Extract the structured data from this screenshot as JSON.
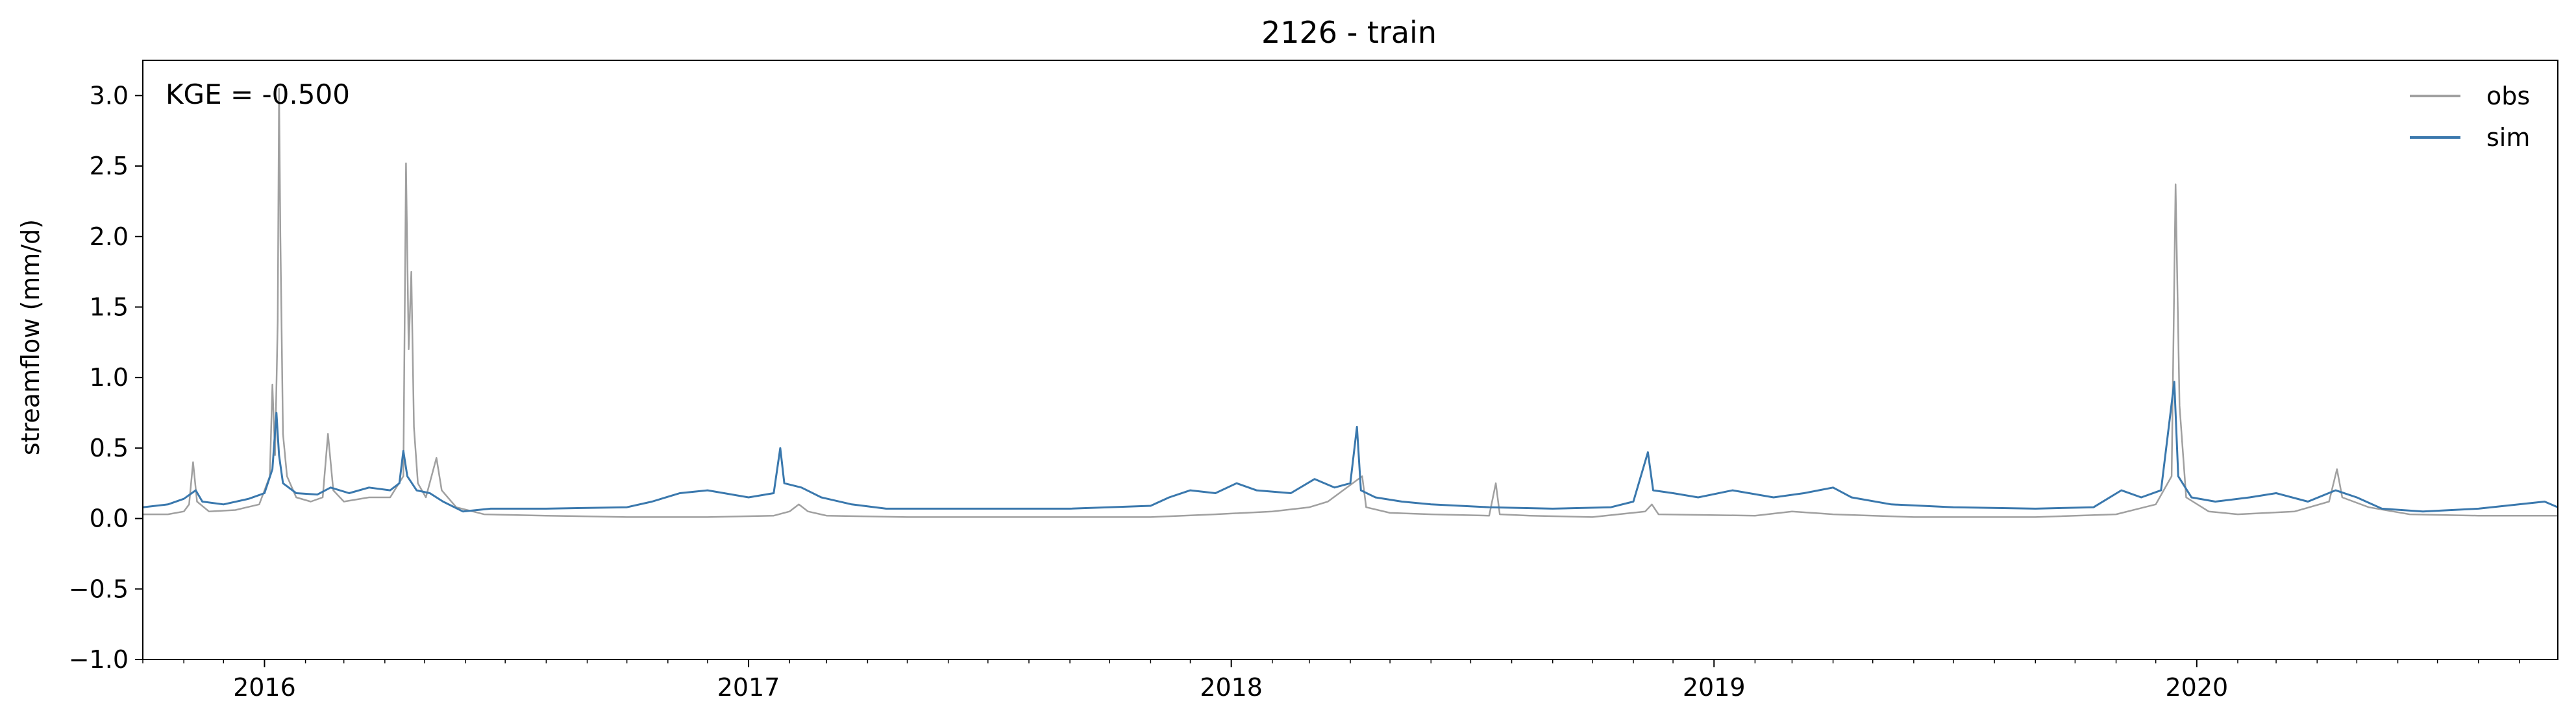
{
  "chart_data": {
    "type": "line",
    "title": "2126 - train",
    "xlabel": "",
    "ylabel": "streamflow (mm/d)",
    "annotation": "KGE = -0.500",
    "xlim": [
      "2015-10-01",
      "2020-09-30"
    ],
    "ylim": [
      -1.0,
      3.25
    ],
    "x_ticks": [
      "2016",
      "2017",
      "2018",
      "2019",
      "2020"
    ],
    "y_ticks": [
      "−1.0",
      "−0.5",
      "0.0",
      "0.5",
      "1.0",
      "1.5",
      "2.0",
      "2.5",
      "3.0"
    ],
    "legend_position": "top-right",
    "grid": false,
    "series": [
      {
        "name": "obs",
        "color": "#a0a0a0",
        "points": [
          [
            "2015-10-01",
            0.03
          ],
          [
            "2015-10-20",
            0.03
          ],
          [
            "2015-11-01",
            0.05
          ],
          [
            "2015-11-05",
            0.1
          ],
          [
            "2015-11-08",
            0.4
          ],
          [
            "2015-11-11",
            0.12
          ],
          [
            "2015-11-20",
            0.05
          ],
          [
            "2015-12-10",
            0.06
          ],
          [
            "2015-12-28",
            0.1
          ],
          [
            "2016-01-05",
            0.3
          ],
          [
            "2016-01-07",
            0.95
          ],
          [
            "2016-01-09",
            0.45
          ],
          [
            "2016-01-11",
            1.4
          ],
          [
            "2016-01-12",
            3.05
          ],
          [
            "2016-01-13",
            2.0
          ],
          [
            "2016-01-15",
            0.6
          ],
          [
            "2016-01-18",
            0.3
          ],
          [
            "2016-01-25",
            0.15
          ],
          [
            "2016-02-05",
            0.12
          ],
          [
            "2016-02-14",
            0.15
          ],
          [
            "2016-02-18",
            0.6
          ],
          [
            "2016-02-22",
            0.2
          ],
          [
            "2016-03-01",
            0.12
          ],
          [
            "2016-03-20",
            0.15
          ],
          [
            "2016-04-05",
            0.15
          ],
          [
            "2016-04-15",
            0.3
          ],
          [
            "2016-04-17",
            2.52
          ],
          [
            "2016-04-19",
            1.2
          ],
          [
            "2016-04-21",
            1.75
          ],
          [
            "2016-04-23",
            0.65
          ],
          [
            "2016-04-26",
            0.25
          ],
          [
            "2016-05-02",
            0.15
          ],
          [
            "2016-05-10",
            0.43
          ],
          [
            "2016-05-14",
            0.2
          ],
          [
            "2016-05-25",
            0.08
          ],
          [
            "2016-06-15",
            0.03
          ],
          [
            "2016-08-01",
            0.02
          ],
          [
            "2016-10-01",
            0.01
          ],
          [
            "2016-12-01",
            0.01
          ],
          [
            "2017-01-20",
            0.02
          ],
          [
            "2017-02-01",
            0.05
          ],
          [
            "2017-02-08",
            0.1
          ],
          [
            "2017-02-15",
            0.05
          ],
          [
            "2017-03-01",
            0.02
          ],
          [
            "2017-05-01",
            0.01
          ],
          [
            "2017-08-01",
            0.01
          ],
          [
            "2017-11-01",
            0.01
          ],
          [
            "2017-12-20",
            0.03
          ],
          [
            "2018-02-01",
            0.05
          ],
          [
            "2018-03-01",
            0.08
          ],
          [
            "2018-03-15",
            0.12
          ],
          [
            "2018-04-10",
            0.3
          ],
          [
            "2018-04-13",
            0.08
          ],
          [
            "2018-05-01",
            0.04
          ],
          [
            "2018-06-01",
            0.03
          ],
          [
            "2018-07-15",
            0.02
          ],
          [
            "2018-07-20",
            0.25
          ],
          [
            "2018-07-23",
            0.03
          ],
          [
            "2018-08-15",
            0.02
          ],
          [
            "2018-10-01",
            0.01
          ],
          [
            "2018-11-10",
            0.05
          ],
          [
            "2018-11-15",
            0.1
          ],
          [
            "2018-11-20",
            0.03
          ],
          [
            "2019-02-01",
            0.02
          ],
          [
            "2019-03-01",
            0.05
          ],
          [
            "2019-04-01",
            0.03
          ],
          [
            "2019-06-01",
            0.01
          ],
          [
            "2019-09-01",
            0.01
          ],
          [
            "2019-11-01",
            0.03
          ],
          [
            "2019-12-01",
            0.1
          ],
          [
            "2019-12-13",
            0.3
          ],
          [
            "2019-12-16",
            2.37
          ],
          [
            "2019-12-19",
            0.8
          ],
          [
            "2019-12-24",
            0.15
          ],
          [
            "2020-01-10",
            0.05
          ],
          [
            "2020-02-01",
            0.03
          ],
          [
            "2020-03-15",
            0.05
          ],
          [
            "2020-04-10",
            0.12
          ],
          [
            "2020-04-16",
            0.35
          ],
          [
            "2020-04-20",
            0.15
          ],
          [
            "2020-05-10",
            0.08
          ],
          [
            "2020-06-10",
            0.03
          ],
          [
            "2020-08-01",
            0.02
          ],
          [
            "2020-09-30",
            0.02
          ]
        ]
      },
      {
        "name": "sim",
        "color": "#3a78ad",
        "points": [
          [
            "2015-10-01",
            0.08
          ],
          [
            "2015-10-20",
            0.1
          ],
          [
            "2015-11-01",
            0.14
          ],
          [
            "2015-11-10",
            0.2
          ],
          [
            "2015-11-15",
            0.12
          ],
          [
            "2015-12-01",
            0.1
          ],
          [
            "2015-12-20",
            0.14
          ],
          [
            "2016-01-01",
            0.18
          ],
          [
            "2016-01-07",
            0.35
          ],
          [
            "2016-01-10",
            0.75
          ],
          [
            "2016-01-12",
            0.45
          ],
          [
            "2016-01-15",
            0.25
          ],
          [
            "2016-01-25",
            0.18
          ],
          [
            "2016-02-10",
            0.17
          ],
          [
            "2016-02-20",
            0.22
          ],
          [
            "2016-03-05",
            0.18
          ],
          [
            "2016-03-20",
            0.22
          ],
          [
            "2016-04-05",
            0.2
          ],
          [
            "2016-04-12",
            0.25
          ],
          [
            "2016-04-15",
            0.48
          ],
          [
            "2016-04-18",
            0.3
          ],
          [
            "2016-04-25",
            0.2
          ],
          [
            "2016-05-05",
            0.18
          ],
          [
            "2016-05-15",
            0.12
          ],
          [
            "2016-05-30",
            0.05
          ],
          [
            "2016-06-20",
            0.07
          ],
          [
            "2016-08-01",
            0.07
          ],
          [
            "2016-10-01",
            0.08
          ],
          [
            "2016-10-20",
            0.12
          ],
          [
            "2016-11-10",
            0.18
          ],
          [
            "2016-12-01",
            0.2
          ],
          [
            "2017-01-01",
            0.15
          ],
          [
            "2017-01-20",
            0.18
          ],
          [
            "2017-01-25",
            0.5
          ],
          [
            "2017-01-28",
            0.25
          ],
          [
            "2017-02-10",
            0.22
          ],
          [
            "2017-02-25",
            0.15
          ],
          [
            "2017-03-20",
            0.1
          ],
          [
            "2017-04-15",
            0.07
          ],
          [
            "2017-06-01",
            0.07
          ],
          [
            "2017-09-01",
            0.07
          ],
          [
            "2017-11-01",
            0.09
          ],
          [
            "2017-11-15",
            0.15
          ],
          [
            "2017-12-01",
            0.2
          ],
          [
            "2017-12-20",
            0.18
          ],
          [
            "2018-01-05",
            0.25
          ],
          [
            "2018-01-20",
            0.2
          ],
          [
            "2018-02-15",
            0.18
          ],
          [
            "2018-03-05",
            0.28
          ],
          [
            "2018-03-20",
            0.22
          ],
          [
            "2018-04-01",
            0.25
          ],
          [
            "2018-04-06",
            0.65
          ],
          [
            "2018-04-09",
            0.2
          ],
          [
            "2018-04-20",
            0.15
          ],
          [
            "2018-05-10",
            0.12
          ],
          [
            "2018-06-01",
            0.1
          ],
          [
            "2018-07-15",
            0.08
          ],
          [
            "2018-09-01",
            0.07
          ],
          [
            "2018-10-15",
            0.08
          ],
          [
            "2018-11-01",
            0.12
          ],
          [
            "2018-11-12",
            0.47
          ],
          [
            "2018-11-16",
            0.2
          ],
          [
            "2018-12-01",
            0.18
          ],
          [
            "2018-12-20",
            0.15
          ],
          [
            "2019-01-15",
            0.2
          ],
          [
            "2019-02-15",
            0.15
          ],
          [
            "2019-03-10",
            0.18
          ],
          [
            "2019-04-01",
            0.22
          ],
          [
            "2019-04-15",
            0.15
          ],
          [
            "2019-05-15",
            0.1
          ],
          [
            "2019-07-01",
            0.08
          ],
          [
            "2019-09-01",
            0.07
          ],
          [
            "2019-10-15",
            0.08
          ],
          [
            "2019-11-05",
            0.2
          ],
          [
            "2019-11-20",
            0.15
          ],
          [
            "2019-12-05",
            0.2
          ],
          [
            "2019-12-15",
            0.97
          ],
          [
            "2019-12-18",
            0.3
          ],
          [
            "2019-12-28",
            0.15
          ],
          [
            "2020-01-15",
            0.12
          ],
          [
            "2020-02-10",
            0.15
          ],
          [
            "2020-03-01",
            0.18
          ],
          [
            "2020-03-25",
            0.12
          ],
          [
            "2020-04-15",
            0.2
          ],
          [
            "2020-05-01",
            0.15
          ],
          [
            "2020-05-20",
            0.07
          ],
          [
            "2020-06-20",
            0.05
          ],
          [
            "2020-08-01",
            0.07
          ],
          [
            "2020-09-20",
            0.12
          ],
          [
            "2020-09-30",
            0.08
          ]
        ]
      }
    ]
  }
}
